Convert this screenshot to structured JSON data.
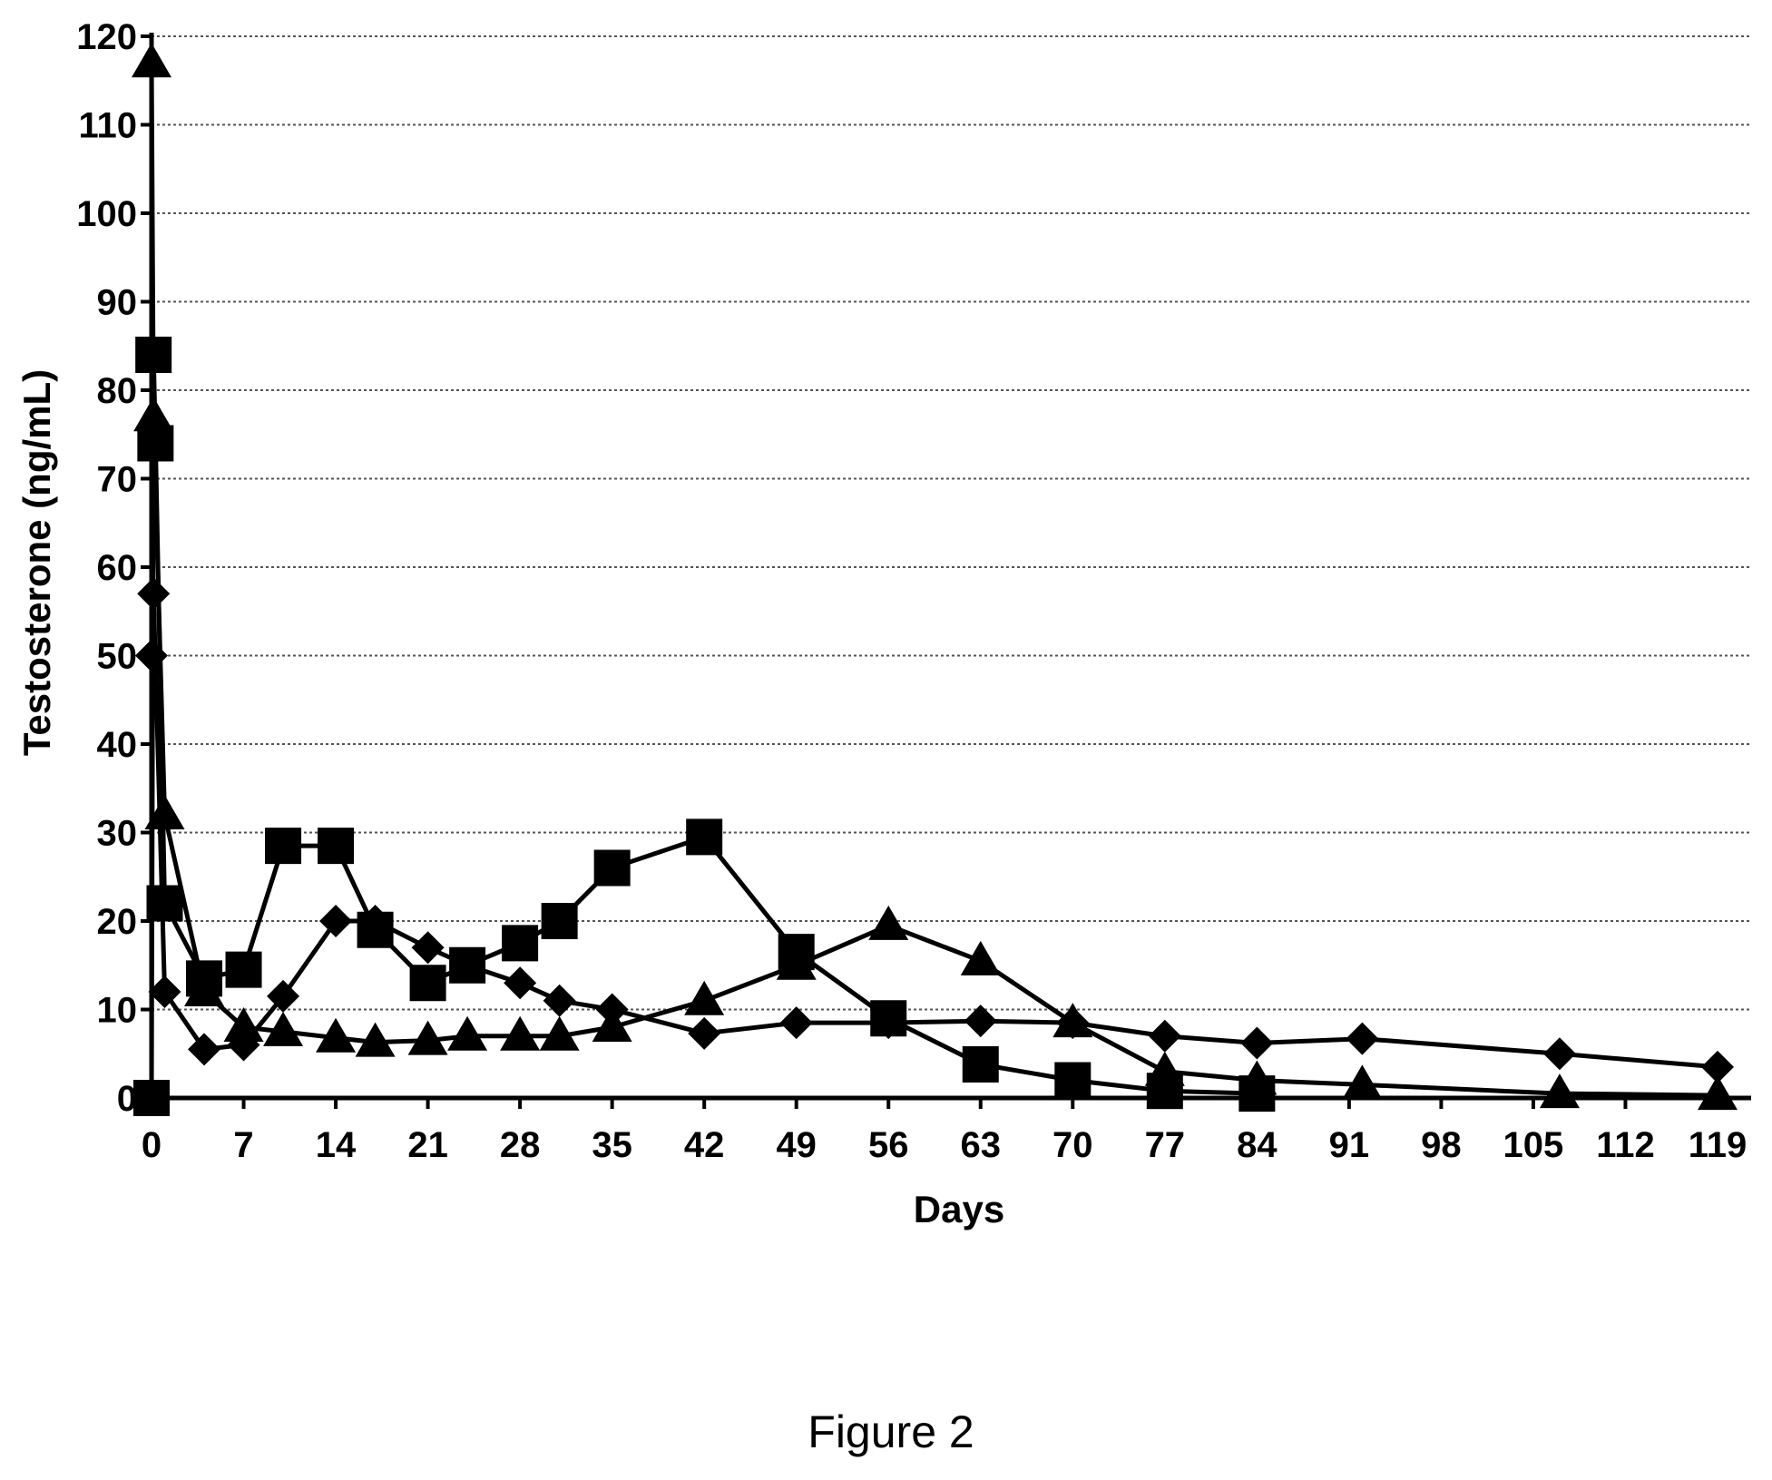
{
  "figure_caption": "Figure 2",
  "chart_data": {
    "type": "line",
    "title": "",
    "xlabel": "Days",
    "ylabel": "Testosterone (ng/mL)",
    "xlim": [
      0,
      121
    ],
    "ylim": [
      0,
      120
    ],
    "xticks": [
      0,
      7,
      14,
      21,
      28,
      35,
      42,
      49,
      56,
      63,
      70,
      77,
      84,
      91,
      98,
      105,
      112,
      119
    ],
    "yticks": [
      0,
      10,
      20,
      30,
      40,
      50,
      60,
      70,
      80,
      90,
      100,
      110,
      120
    ],
    "grid": "horizontal-dotted",
    "colors": {
      "line": "#000000",
      "grid": "#555555"
    },
    "series": [
      {
        "marker": "diamond",
        "x": [
          0,
          0.15,
          1,
          4,
          7,
          10,
          14,
          17,
          21,
          24,
          28,
          31,
          35,
          42,
          49,
          56,
          63,
          70,
          77,
          84,
          92,
          107,
          119
        ],
        "y": [
          50,
          57,
          12,
          5.5,
          6,
          11.5,
          20,
          20,
          17,
          15,
          13,
          11,
          10,
          7.3,
          8.5,
          8.5,
          8.7,
          8.5,
          7,
          6.2,
          6.7,
          5,
          3.5
        ]
      },
      {
        "marker": "square",
        "x": [
          0,
          0.15,
          0.3,
          1,
          4,
          7,
          10,
          14,
          17,
          21,
          24,
          28,
          31,
          35,
          42,
          49,
          56,
          63,
          70,
          77,
          84
        ],
        "y": [
          0,
          84,
          74,
          22,
          13.5,
          14.5,
          28.5,
          28.5,
          19,
          13,
          15,
          17.5,
          20,
          26,
          29.5,
          16.5,
          9,
          3.8,
          2,
          0.8,
          0.5
        ]
      },
      {
        "marker": "triangle",
        "x": [
          0,
          0.15,
          1,
          4,
          7,
          10,
          14,
          17,
          21,
          24,
          28,
          31,
          35,
          42,
          49,
          56,
          63,
          70,
          77,
          84,
          92,
          107,
          119
        ],
        "y": [
          117,
          77,
          32,
          12,
          8,
          7.5,
          6.8,
          6.3,
          6.5,
          7,
          7,
          7,
          8,
          11,
          15,
          19.5,
          15.5,
          8.5,
          3,
          2,
          1.5,
          0.5,
          0.3
        ]
      }
    ]
  }
}
